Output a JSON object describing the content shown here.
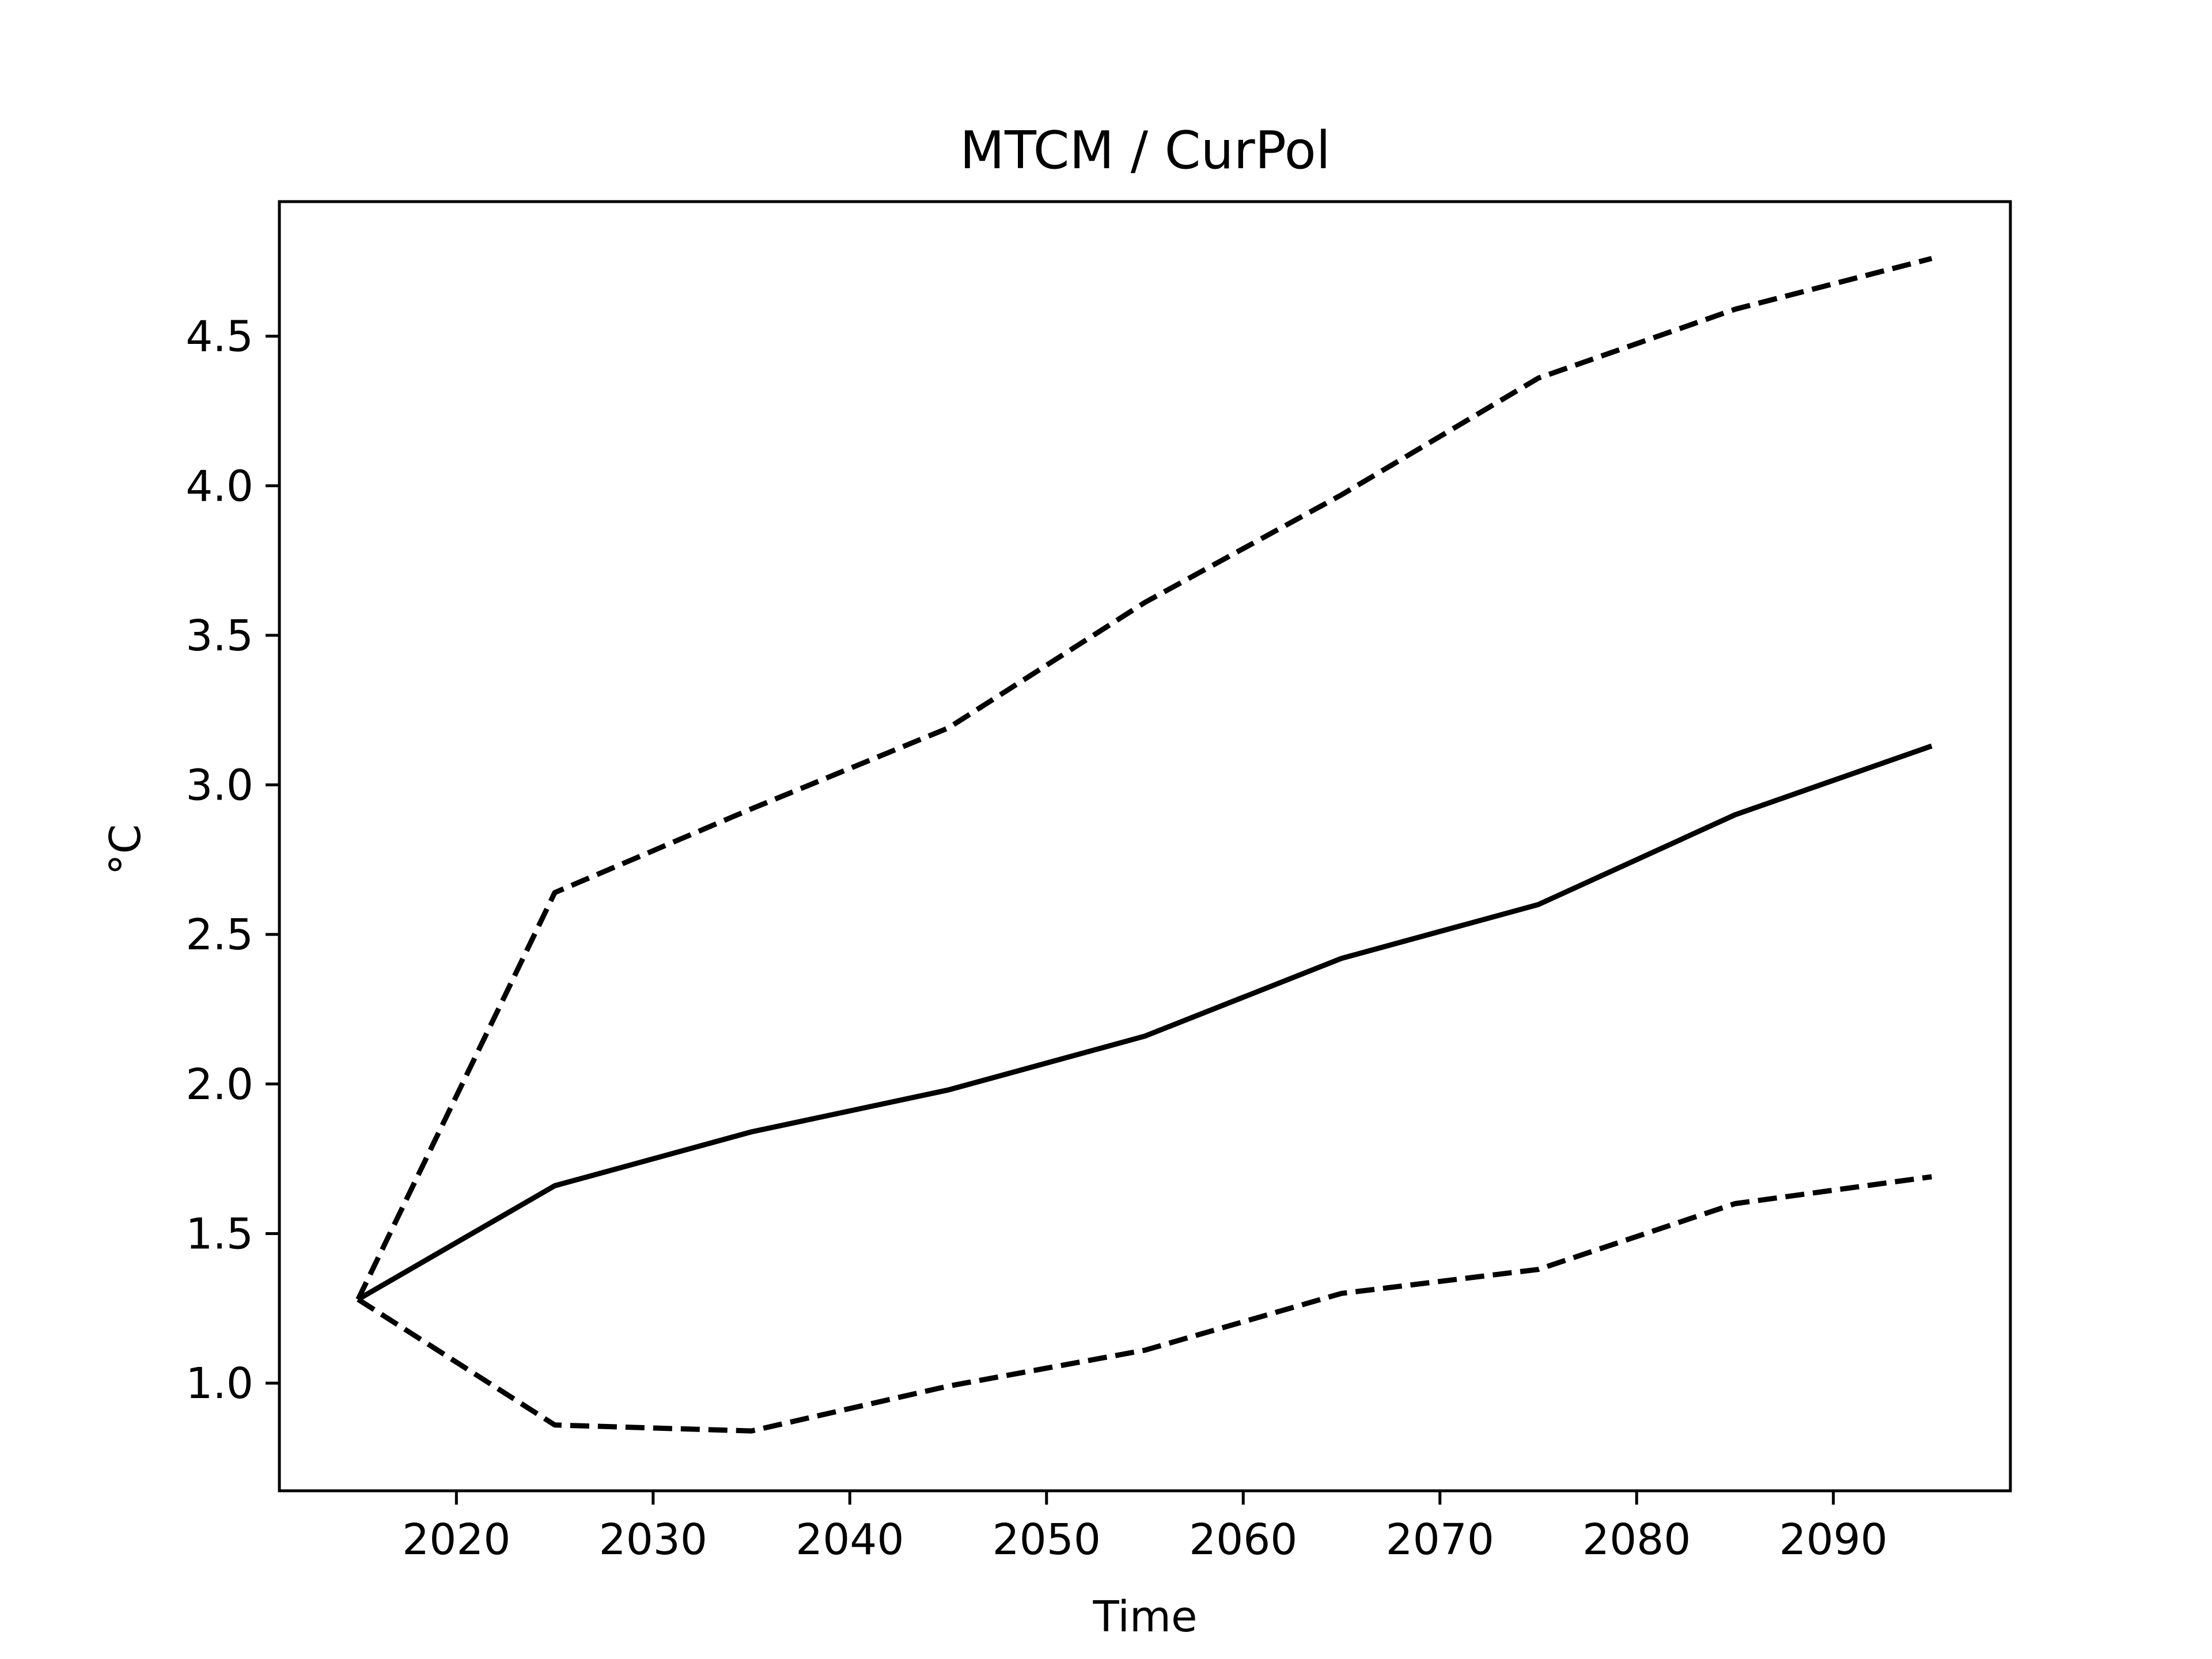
{
  "chart_data": {
    "type": "line",
    "title": "MTCM / CurPol",
    "xlabel": "Time",
    "ylabel": "°C",
    "xlim": [
      2011,
      2099
    ],
    "ylim": [
      0.64,
      4.95
    ],
    "x_ticks": [
      2020,
      2030,
      2040,
      2050,
      2060,
      2070,
      2080,
      2090
    ],
    "y_ticks": [
      1.0,
      1.5,
      2.0,
      2.5,
      3.0,
      3.5,
      4.0,
      4.5
    ],
    "x_tick_labels": [
      "2020",
      "2030",
      "2040",
      "2050",
      "2060",
      "2070",
      "2080",
      "2090"
    ],
    "y_tick_labels": [
      "1.0",
      "1.5",
      "2.0",
      "2.5",
      "3.0",
      "3.5",
      "4.0",
      "4.5"
    ],
    "grid": false,
    "x": [
      2015,
      2025,
      2035,
      2045,
      2055,
      2065,
      2075,
      2085,
      2095
    ],
    "series": [
      {
        "style": "dashed",
        "color": "#000000",
        "values": [
          1.28,
          2.64,
          2.92,
          3.19,
          3.61,
          3.97,
          4.36,
          4.59,
          4.76
        ]
      },
      {
        "style": "solid",
        "color": "#000000",
        "values": [
          1.28,
          1.66,
          1.84,
          1.98,
          2.16,
          2.42,
          2.6,
          2.9,
          3.13
        ]
      },
      {
        "style": "dashed",
        "color": "#000000",
        "values": [
          1.28,
          0.86,
          0.84,
          0.99,
          1.11,
          1.3,
          1.38,
          1.6,
          1.69
        ]
      }
    ]
  }
}
